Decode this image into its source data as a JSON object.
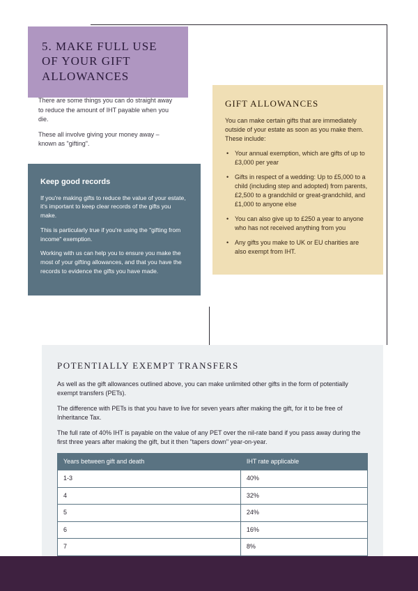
{
  "section": {
    "heading": "5. MAKE FULL USE OF YOUR GIFT ALLOWANCES",
    "intro_p1": "There are some things you can do straight away to reduce the amount of IHT payable when you die.",
    "intro_p2": "These all involve giving your money away – known as \"gifting\"."
  },
  "records": {
    "title": "Keep good records",
    "p1": "If you're making gifts to reduce the value of your estate, it's important to keep clear records of the gifts you make.",
    "p2": "This is particularly true if you're using the \"gifting from income\" exemption.",
    "p3": "Working with us can help you to ensure you make the most of your gifting allowances, and that you have the records to evidence the gifts you have made."
  },
  "allowances": {
    "title": "GIFT ALLOWANCES",
    "intro": "You can make certain gifts that are immediately outside of your estate as soon as you make them. These include:",
    "items": [
      "Your annual exemption, which are gifts of up to £3,000 per year",
      "Gifts in respect of a wedding: Up to £5,000 to a child (including step and adopted) from parents, £2,500 to a grandchild or great-grandchild, and £1,000 to anyone else",
      "You can also give up to £250 a year to anyone who has not received anything from you",
      "Any gifts you make to UK or EU charities are also exempt from IHT."
    ]
  },
  "pet": {
    "title": "POTENTIALLY EXEMPT TRANSFERS",
    "p1": "As well as the gift allowances outlined above, you can make unlimited other gifts in the form of potentially exempt transfers (PETs).",
    "p2": "The difference with PETs is that you have to live for seven years after making the gift, for it to be free of Inheritance Tax.",
    "p3": "The full rate of 40% IHT is payable on the value of any PET over the nil-rate band if you pass away during the first three years after making the gift, but it then \"tapers down\" year-on-year.",
    "table": {
      "columns": [
        "Years between gift and death",
        "IHT rate applicable"
      ],
      "rows": [
        [
          "1-3",
          "40%"
        ],
        [
          "4",
          "32%"
        ],
        [
          "5",
          "24%"
        ],
        [
          "6",
          "16%"
        ],
        [
          "7",
          "8%"
        ]
      ]
    }
  },
  "colors": {
    "purple_bg": "#af96c1",
    "blue_bg": "#5a7382",
    "cream_bg": "#f0dfb5",
    "gray_bg": "#edf0f2",
    "footer_bg": "#3e2140",
    "line": "#2e2a33"
  }
}
